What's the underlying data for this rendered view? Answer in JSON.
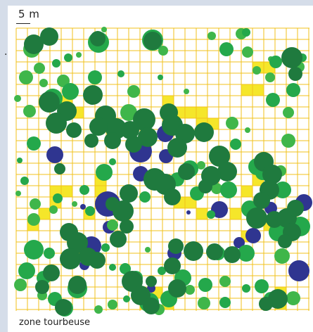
{
  "scale_label": "5 m",
  "dot_mark": ".",
  "caption": "zone tourbeuse",
  "colors": {
    "grid": "#f1c21b",
    "patch": "#f5e62a",
    "dark_green": "#1f7a3e",
    "mid_green": "#24a84b",
    "light_green": "#3fb64a",
    "blue": "#2f3590"
  }
}
